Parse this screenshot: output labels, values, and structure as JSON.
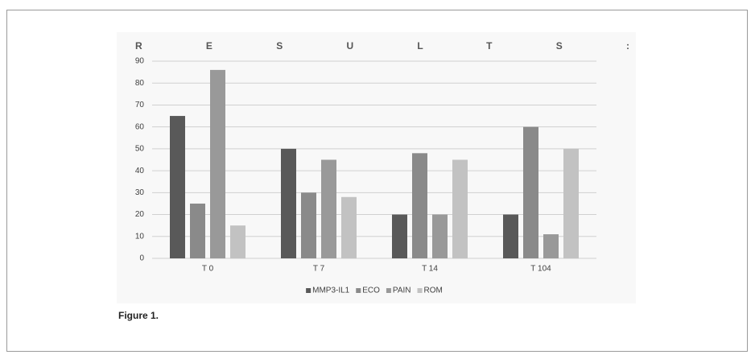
{
  "chart_data": {
    "type": "bar",
    "title": "RESULTS:",
    "caption": "Figure 1.",
    "categories": [
      "T 0",
      "T 7",
      "T 14",
      "T 104"
    ],
    "series": [
      {
        "name": "MMP3-IL1",
        "color": "#595959",
        "values": [
          65,
          50,
          20,
          20
        ]
      },
      {
        "name": "ECO",
        "color": "#8a8a8a",
        "values": [
          25,
          30,
          48,
          60
        ]
      },
      {
        "name": "PAIN",
        "color": "#999999",
        "values": [
          86,
          45,
          20,
          11
        ]
      },
      {
        "name": "ROM",
        "color": "#c2c2c2",
        "values": [
          15,
          28,
          45,
          50
        ]
      }
    ],
    "ylim": [
      0,
      90
    ],
    "yticks": [
      0,
      10,
      20,
      30,
      40,
      50,
      60,
      70,
      80,
      90
    ],
    "grid": true,
    "legend": "bottom"
  }
}
